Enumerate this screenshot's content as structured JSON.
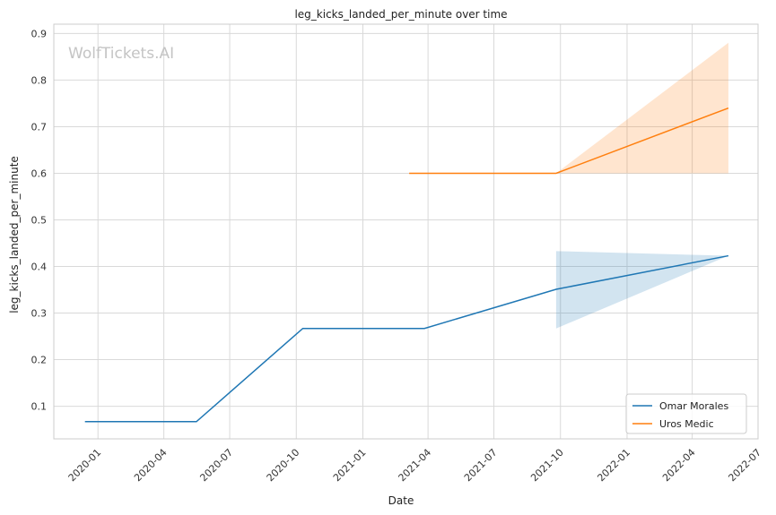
{
  "watermark": "WolfTickets.AI",
  "chart_data": {
    "type": "line",
    "title": "leg_kicks_landed_per_minute over time",
    "xlabel": "Date",
    "ylabel": "leg_kicks_landed_per_minute",
    "x_axis_kind": "date",
    "xlim": [
      "2019-11-01",
      "2022-07-01"
    ],
    "ylim": [
      0.03,
      0.92
    ],
    "x_ticks": [
      "2020-01",
      "2020-04",
      "2020-07",
      "2020-10",
      "2021-01",
      "2021-04",
      "2021-07",
      "2021-10",
      "2022-01",
      "2022-04",
      "2022-07"
    ],
    "y_ticks": [
      0.1,
      0.2,
      0.3,
      0.4,
      0.5,
      0.6,
      0.7,
      0.8,
      0.9
    ],
    "grid": true,
    "legend_position": "bottom-right",
    "series": [
      {
        "name": "Omar Morales",
        "color": "#1f77b4",
        "points": [
          {
            "x": "2019-12-14",
            "y": 0.067
          },
          {
            "x": "2020-05-16",
            "y": 0.067
          },
          {
            "x": "2020-10-10",
            "y": 0.267
          },
          {
            "x": "2021-03-27",
            "y": 0.267
          },
          {
            "x": "2021-09-25",
            "y": 0.351
          },
          {
            "x": "2022-05-21",
            "y": 0.423
          }
        ],
        "band": [
          {
            "x": "2021-09-25",
            "low": 0.267,
            "high": 0.433
          },
          {
            "x": "2022-05-21",
            "low": 0.423,
            "high": 0.423
          }
        ]
      },
      {
        "name": "Uros Medic",
        "color": "#ff7f0e",
        "points": [
          {
            "x": "2021-03-06",
            "y": 0.6
          },
          {
            "x": "2021-09-25",
            "y": 0.6
          },
          {
            "x": "2022-05-21",
            "y": 0.74
          }
        ],
        "band": [
          {
            "x": "2021-09-25",
            "low": 0.6,
            "high": 0.6
          },
          {
            "x": "2022-05-21",
            "low": 0.6,
            "high": 0.88
          }
        ]
      }
    ]
  }
}
